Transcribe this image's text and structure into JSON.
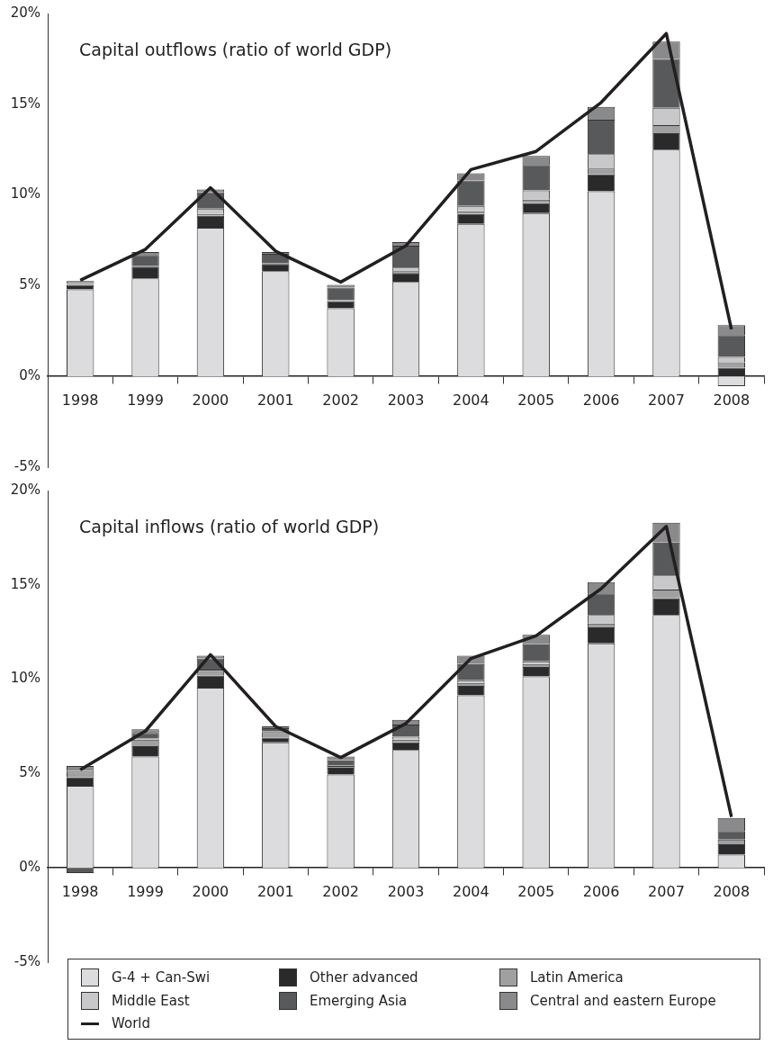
{
  "chart_data": [
    {
      "type": "bar",
      "title": "Capital outflows (ratio of world GDP)",
      "stacked": true,
      "legend": false,
      "categories": [
        "1998",
        "1999",
        "2000",
        "2001",
        "2002",
        "2003",
        "2004",
        "2005",
        "2006",
        "2007",
        "2008"
      ],
      "ylim": [
        -5,
        20
      ],
      "yticks": [
        {
          "value": -5,
          "label": "-5%"
        },
        {
          "value": 0,
          "label": "0%"
        },
        {
          "value": 5,
          "label": "5%"
        },
        {
          "value": 10,
          "label": "10%"
        },
        {
          "value": 15,
          "label": "15%"
        },
        {
          "value": 20,
          "label": "20%"
        }
      ],
      "series": [
        {
          "color": "#dcdcde",
          "values": [
            4.8,
            5.4,
            8.2,
            5.8,
            3.75,
            5.2,
            8.4,
            9.0,
            10.2,
            12.5,
            -0.54
          ]
        },
        {
          "color": "#2a2a2a",
          "values": [
            0.25,
            0.65,
            0.65,
            0.4,
            0.4,
            0.5,
            0.55,
            0.55,
            0.95,
            0.9,
            0.48
          ]
        },
        {
          "color": "#a0a0a2",
          "values": [
            null,
            0.05,
            0.1,
            0.05,
            null,
            0.1,
            0.15,
            0.2,
            0.3,
            0.45,
            0.3
          ]
        },
        {
          "color": "#c8c8ca",
          "values": [
            0.05,
            null,
            0.3,
            null,
            0.05,
            0.2,
            0.3,
            0.5,
            0.8,
            0.95,
            0.3
          ]
        },
        {
          "color": "#58595b",
          "values": [
            0.05,
            0.6,
            0.9,
            0.5,
            0.7,
            1.2,
            1.4,
            1.4,
            1.9,
            2.7,
            1.2
          ]
        },
        {
          "color": "#8a8a8c",
          "values": [
            0.1,
            0.15,
            0.15,
            0.1,
            0.15,
            0.2,
            0.4,
            0.5,
            0.7,
            0.95,
            0.55
          ]
        },
        {
          "type": "line",
          "color": "#231f20",
          "values": [
            5.3,
            7.0,
            10.4,
            6.9,
            5.2,
            7.2,
            11.4,
            12.4,
            15.1,
            18.9,
            2.6
          ]
        }
      ]
    },
    {
      "type": "bar",
      "title": "Capital inflows (ratio of world GDP)",
      "stacked": true,
      "legend": "bottom",
      "categories": [
        "1998",
        "1999",
        "2000",
        "2001",
        "2002",
        "2003",
        "2004",
        "2005",
        "2006",
        "2007",
        "2008"
      ],
      "ylim": [
        -5,
        20
      ],
      "yticks": [
        {
          "value": -5,
          "label": "-5%"
        },
        {
          "value": 0,
          "label": "0%"
        },
        {
          "value": 5,
          "label": "5%"
        },
        {
          "value": 10,
          "label": "10%"
        },
        {
          "value": 15,
          "label": "15%"
        },
        {
          "value": 20,
          "label": "20%"
        }
      ],
      "series": [
        {
          "name": "G-4 + Can-Swi",
          "color": "#dcdcde",
          "values": [
            4.35,
            5.9,
            9.55,
            6.65,
            4.95,
            6.25,
            9.15,
            10.15,
            11.9,
            13.4,
            0.7
          ]
        },
        {
          "name": "Other advanced",
          "color": "#2a2a2a",
          "values": [
            0.45,
            0.55,
            0.65,
            0.25,
            0.35,
            0.4,
            0.5,
            0.5,
            0.85,
            0.9,
            0.55
          ]
        },
        {
          "name": "Latin America",
          "color": "#a0a0a2",
          "values": [
            0.3,
            0.35,
            0.2,
            0.3,
            0.1,
            0.15,
            0.15,
            0.15,
            0.2,
            0.45,
            0.25
          ]
        },
        {
          "name": "Middle East",
          "color": "#c8c8ca",
          "values": [
            0.1,
            0.05,
            0.1,
            0.05,
            0.05,
            0.15,
            0.15,
            0.15,
            0.45,
            0.75,
            0
          ]
        },
        {
          "name": "Emerging Asia",
          "color": "#58595b",
          "values": [
            -0.28,
            0.3,
            0.6,
            0.15,
            0.25,
            0.65,
            0.85,
            0.9,
            1.15,
            1.75,
            0.45
          ]
        },
        {
          "name": "Central and eastern Europe",
          "color": "#8a8a8c",
          "values": [
            0.2,
            0.2,
            0.15,
            0.1,
            0.2,
            0.25,
            0.45,
            0.5,
            0.6,
            1.05,
            0.7
          ]
        },
        {
          "name": "World",
          "type": "line",
          "color": "#231f20",
          "values": [
            5.2,
            7.25,
            11.3,
            7.5,
            5.85,
            7.65,
            11.1,
            12.3,
            14.8,
            18.1,
            2.7
          ]
        }
      ]
    }
  ]
}
